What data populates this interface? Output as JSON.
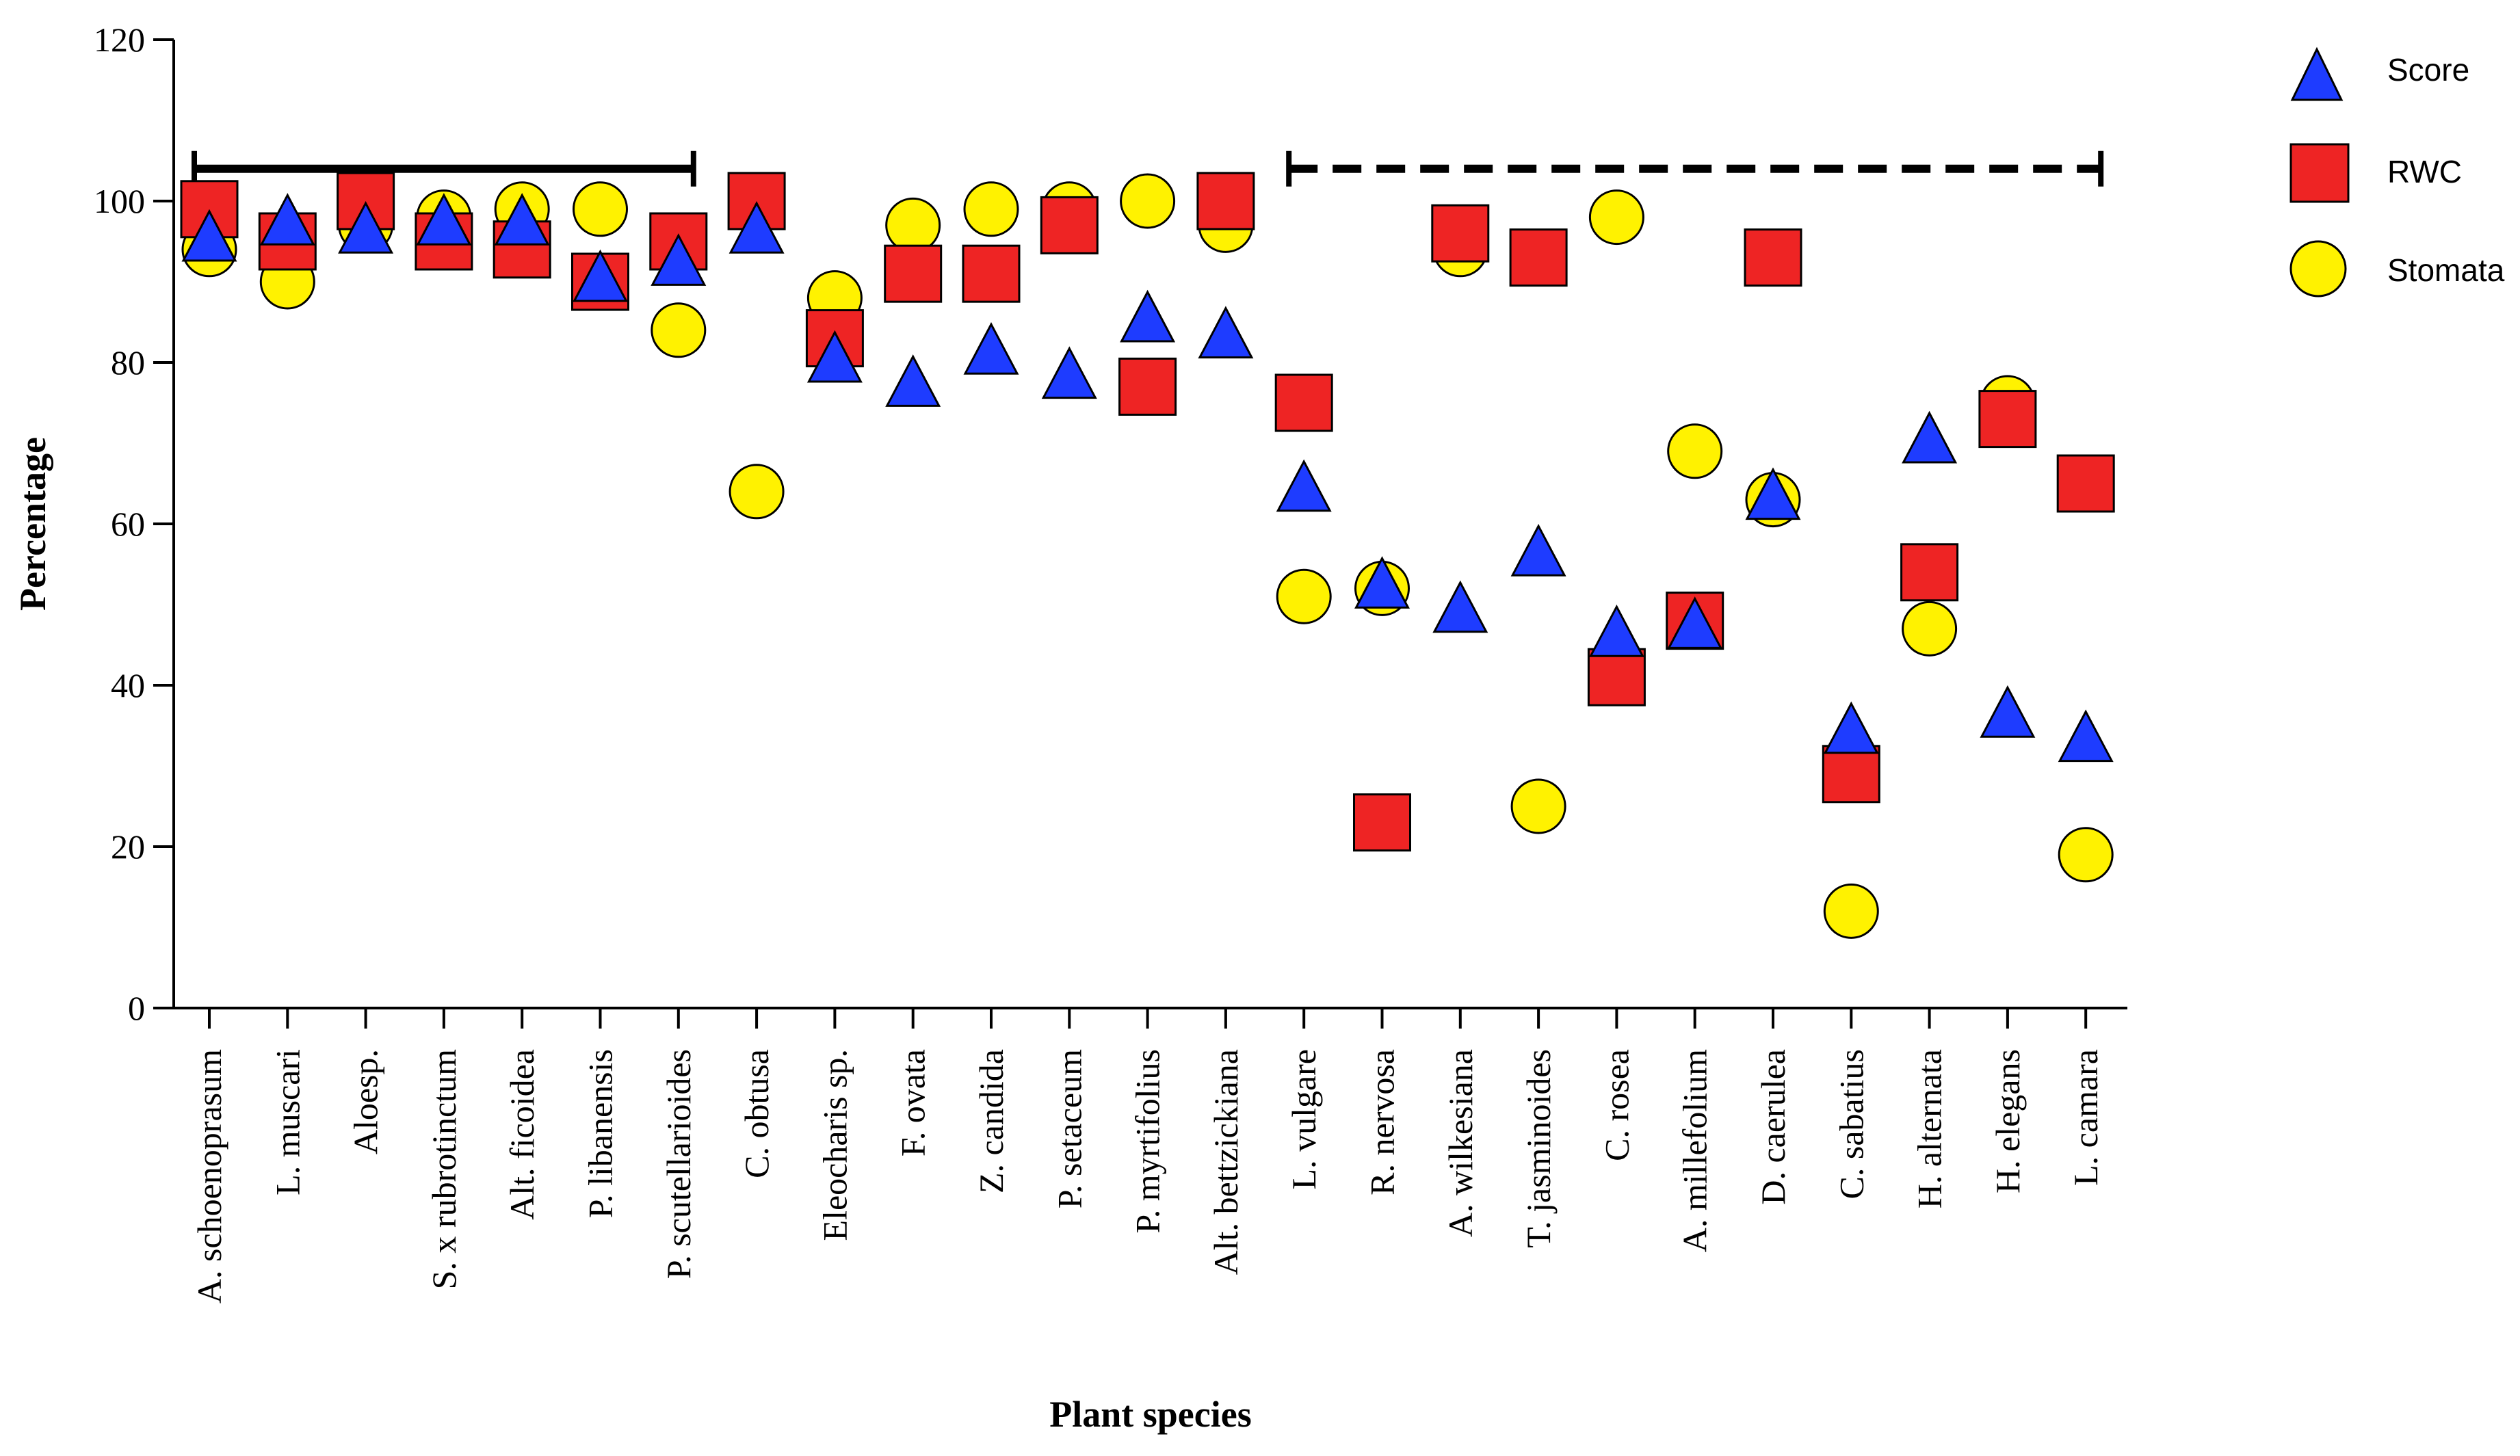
{
  "chart_data": {
    "type": "scatter",
    "xlabel": "Plant species",
    "ylabel": "Percentage",
    "ylim": [
      0,
      120
    ],
    "yticks": [
      0,
      20,
      40,
      60,
      80,
      100,
      120
    ],
    "grid": false,
    "legend_position": "top-right",
    "categories": [
      "A. schoenoprasum",
      "L. muscari",
      "Aloesp.",
      "S. x rubrotinctum",
      "Alt. ficoidea",
      "P. libanensis",
      "P. scutellarioides",
      "C. obtusa",
      "Eleocharis sp.",
      "F. ovata",
      "Z. candida",
      "P. setaceum",
      "P. myrtifolius",
      "Alt. bettzickiana",
      "L. vulgare",
      "R. nervosa",
      "A. wilkesiana",
      "T. jasminoides",
      "C. rosea",
      "A. millefolium",
      "D. caerulea",
      "C. sabatius",
      "H. alternata",
      "H. elegans",
      "L. camara"
    ],
    "series": [
      {
        "name": "Stomata",
        "marker": "circle",
        "color": "#FFF200",
        "values": [
          94,
          90,
          97,
          98,
          99,
          99,
          84,
          64,
          88,
          97,
          99,
          99,
          100,
          97,
          51,
          52,
          94,
          25,
          98,
          69,
          63,
          12,
          47,
          75,
          19
        ]
      },
      {
        "name": "RWC",
        "marker": "square",
        "color": "#EE2424",
        "values": [
          99,
          95,
          100,
          95,
          94,
          90,
          95,
          100,
          83,
          91,
          91,
          97,
          77,
          100,
          75,
          23,
          96,
          93,
          41,
          48,
          93,
          29,
          54,
          73,
          65
        ]
      },
      {
        "name": "Score",
        "marker": "triangle",
        "color": "#1E3CFF",
        "values": [
          95,
          97,
          96,
          97,
          97,
          90,
          92,
          96,
          80,
          77,
          81,
          78,
          85,
          83,
          64,
          52,
          49,
          56,
          46,
          47,
          63,
          34,
          70,
          36,
          33
        ]
      }
    ],
    "annotations": [
      {
        "type": "solid-bracket",
        "from": "A. schoenoprasum",
        "to": "P. scutellarioides",
        "y": 104
      },
      {
        "type": "dashed-bracket",
        "from": "L. vulgare",
        "to": "L. camara",
        "y": 104
      }
    ]
  },
  "legend": {
    "items": [
      {
        "label": "Score",
        "marker": "triangle"
      },
      {
        "label": "RWC",
        "marker": "square"
      },
      {
        "label": "Stomata",
        "marker": "circle"
      }
    ]
  }
}
